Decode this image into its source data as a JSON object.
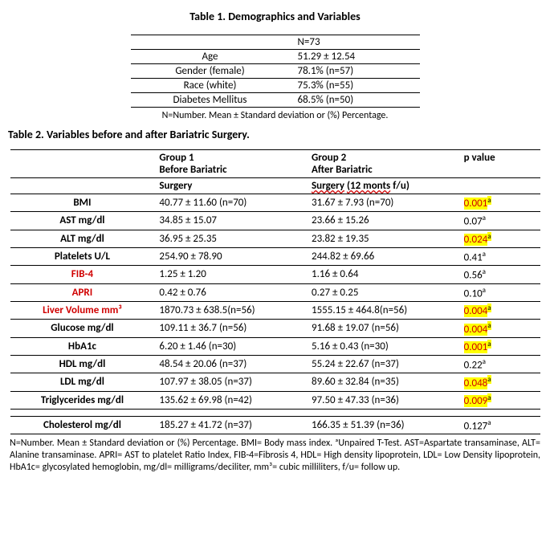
{
  "table1": {
    "title": "Table 1. Demographics and Variables",
    "header_n": "N=73",
    "rows": [
      {
        "label": "Age",
        "value": "51.29 ± 12.54"
      },
      {
        "label": "Gender (female)",
        "value": "78.1% (n=57)"
      },
      {
        "label": "Race (white)",
        "value": "75.3% (n=55)"
      },
      {
        "label": "Diabetes Mellitus",
        "value": "68.5% (n=50)"
      }
    ],
    "footnote": "N=Number. Mean ± Standard deviation or (%) Percentage."
  },
  "table2": {
    "title": "Table 2. Variables before and after Bariatric Surgery.",
    "head": {
      "g1_line1": "Group 1",
      "g1_line2": "Before Bariatric",
      "g1_line3": "Surgery",
      "g2_line1": "Group 2",
      "g2_line2a": "After Bariatric",
      "g2_line2b_wavy": "Surgery",
      "g2_line2c_wavy": "(12 monts",
      "g2_line2d": "f/u)",
      "p": "p value"
    },
    "rows": [
      {
        "label": "BMI",
        "red": false,
        "g1": "40.77 ± 11.60 (n=70)",
        "g2": "31.67 ± 7.93 (n=70)",
        "p": "0.001",
        "p_red": true,
        "p_hl": true,
        "p_sup": true
      },
      {
        "label": "AST mg/dl",
        "red": false,
        "g1": "34.85 ± 15.07",
        "g2": "23.66 ± 15.26",
        "p": "0.07",
        "p_red": false,
        "p_hl": false,
        "p_sup": true
      },
      {
        "label": "ALT mg/dl",
        "red": false,
        "g1": "36.95 ± 25.35",
        "g2": "23.82 ± 19.35",
        "p": "0.024",
        "p_red": true,
        "p_hl": true,
        "p_sup": true
      },
      {
        "label": "Platelets U/L",
        "red": false,
        "g1": "254.90 ± 78.90",
        "g2": "244.82 ± 69.66",
        "p": "0.41",
        "p_red": false,
        "p_hl": false,
        "p_sup": true
      },
      {
        "label": "FIB-4",
        "red": true,
        "g1": "1.25 ± 1.20",
        "g2": "1.16 ± 0.64",
        "p": "0.56",
        "p_red": false,
        "p_hl": false,
        "p_sup": true
      },
      {
        "label": "APRI",
        "red": true,
        "g1": "0.42 ± 0.76",
        "g2": "0.27 ± 0.25",
        "p": "0.10",
        "p_red": false,
        "p_hl": false,
        "p_sup": true
      },
      {
        "label": "Liver Volume mm³",
        "red": true,
        "g1": "1870.73 ± 638.5(n=56)",
        "g2": "1555.15 ± 464.8(n=56)",
        "p": "0.004",
        "p_red": true,
        "p_hl": true,
        "p_sup": true
      },
      {
        "label": "Glucose mg/dl",
        "red": false,
        "g1": "109.11 ± 36.7 (n=56)",
        "g2": "91.68 ± 19.07 (n=56)",
        "p": "0.004",
        "p_red": true,
        "p_hl": true,
        "p_sup": true
      },
      {
        "label": "HbA1c",
        "red": false,
        "g1": "6.20 ± 1.46 (n=30)",
        "g2": "5.16 ± 0.43 (n=30)",
        "p": "0.001",
        "p_red": true,
        "p_hl": true,
        "p_sup": true
      },
      {
        "label": "HDL mg/dl",
        "red": false,
        "g1": "48.54 ± 20.06 (n=37)",
        "g2": "55.24 ± 22.67 (n=37)",
        "p": "0.22",
        "p_red": false,
        "p_hl": false,
        "p_sup": true
      },
      {
        "label": "LDL mg/dl",
        "red": false,
        "g1": "107.97 ± 38.05 (n=37)",
        "g2": "89.60 ± 32.84 (n=35)",
        "p": "0.048",
        "p_red": true,
        "p_hl": true,
        "p_sup": true
      },
      {
        "label": "Triglycerides mg/dl",
        "red": false,
        "g1": "135.62 ± 69.98 (n=42)",
        "g2": "97.50 ± 47.33 (n=36)",
        "p": "0.009",
        "p_red": true,
        "p_hl": true,
        "p_sup": true
      }
    ],
    "row_after_gap": {
      "label": "Cholesterol mg/dl",
      "red": false,
      "g1": "185.27 ± 41.72 (n=37)",
      "g2": "166.35 ± 51.39 (n=36)",
      "p": "0.127",
      "p_red": false,
      "p_hl": false,
      "p_sup": true
    },
    "footnote": "N=Number. Mean ± Standard deviation or (%) Percentage. BMI= Body mass index. ᵃUnpaired T-Test. AST=Aspartate transaminase, ALT= Alanine transaminase. APRI= AST to platelet Ratio Index, FIB-4=Fibrosis 4, HDL= High density lipoprotein, LDL= Low Density lipoprotein, HbA1c= glycosylated hemoglobin, mg/dl= milligrams/deciliter, mm³= cubic milliliters, f/u= follow up."
  },
  "colors": {
    "highlight": "#ffff00",
    "red_text": "#d00000",
    "text": "#000000",
    "background": "#ffffff"
  },
  "fonts": {
    "base_pt": 10,
    "title_pt": 11
  }
}
